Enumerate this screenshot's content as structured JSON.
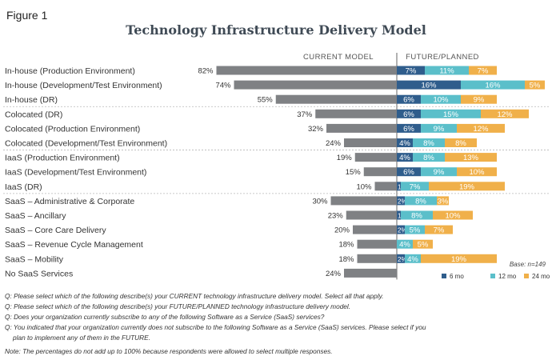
{
  "figure_label": "Figure 1",
  "chart_data": {
    "type": "bar",
    "title": "Technology Infrastructure Delivery Model",
    "panels": {
      "left": "CURRENT MODEL",
      "right": "FUTURE/PLANNED"
    },
    "categories": [
      "In-house (Production Environment)",
      "In-house (Development/Test Environment)",
      "In-house (DR)",
      "Colocated (DR)",
      "Colocated (Production Environment)",
      "Colocated (Development/Test Environment)",
      "IaaS (Production Environment)",
      "IaaS (Development/Test Environment)",
      "IaaS (DR)",
      "SaaS – Administrative & Corporate",
      "SaaS – Ancillary",
      "SaaS – Core Care Delivery",
      "SaaS – Revenue Cycle Management",
      "SaaS – Mobility",
      "No SaaS Services"
    ],
    "groups": [
      3,
      3,
      3,
      6
    ],
    "current": {
      "values": [
        82,
        74,
        55,
        37,
        32,
        24,
        19,
        15,
        10,
        30,
        23,
        20,
        18,
        18,
        24
      ],
      "labels": [
        "82%",
        "74%",
        "55%",
        "37%",
        "32%",
        "24%",
        "19%",
        "15%",
        "10%",
        "30%",
        "23%",
        "20%",
        "18%",
        "18%",
        "24%"
      ],
      "color": "#7f8184"
    },
    "series": [
      {
        "name": "6 mo",
        "color": "#2f5d8c",
        "values": [
          7,
          16,
          6,
          6,
          6,
          4,
          4,
          6,
          1,
          2,
          1,
          2,
          0,
          2,
          null
        ],
        "labels": [
          "7%",
          "16%",
          "6%",
          "6%",
          "6%",
          "4%",
          "4%",
          "6%",
          "1%",
          "2%",
          "1%",
          "2%",
          "",
          "2%",
          ""
        ]
      },
      {
        "name": "12 mo",
        "color": "#5bbfca",
        "values": [
          11,
          16,
          10,
          15,
          9,
          8,
          8,
          9,
          7,
          8,
          8,
          5,
          4,
          4,
          null
        ],
        "labels": [
          "11%",
          "16%",
          "10%",
          "15%",
          "9%",
          "8%",
          "8%",
          "9%",
          "7%",
          "8%",
          "8%",
          "5%",
          "4%",
          "4%",
          ""
        ]
      },
      {
        "name": "24 mo",
        "color": "#f0b04a",
        "values": [
          7,
          5,
          9,
          12,
          12,
          8,
          13,
          10,
          19,
          3,
          10,
          7,
          5,
          19,
          null
        ],
        "labels": [
          "7%",
          "5%",
          "9%",
          "12%",
          "12%",
          "8%",
          "13%",
          "10%",
          "19%",
          "3%",
          "10%",
          "7%",
          "5%",
          "19%",
          ""
        ]
      }
    ],
    "base_note": "Base: n=149",
    "legend_position": "bottom-right"
  },
  "questions": [
    {
      "text": "Q:  Please select which of the following describe(s) your CURRENT technology infrastructure delivery model.  Select all that apply."
    },
    {
      "text": "Q:  Please select which of the following describe(s) your FUTURE/PLANNED technology infrastructure delivery model."
    },
    {
      "text": "Q:  Does your organization currently subscribe to any of the following Software as a Service (SaaS) services?"
    },
    {
      "text": "Q:  You indicated that your organization currently does not subscribe to the following Software as a Service (SaaS) services.  Please select if you",
      "cont": "plan to implement any of them in the FUTURE."
    }
  ],
  "note": "Note: The percentages do not add up to 100% because respondents were allowed to select multiple responses."
}
